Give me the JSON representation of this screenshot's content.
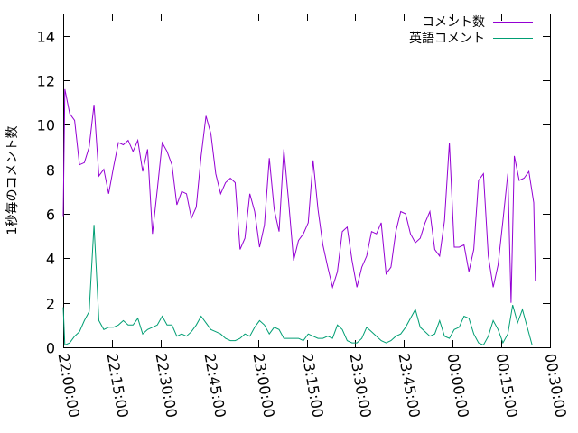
{
  "chart_data": {
    "type": "line",
    "title": "",
    "xlabel": "",
    "ylabel": "1秒毎のコメント数",
    "ylim": [
      0,
      15
    ],
    "yticks": [
      0,
      2,
      4,
      6,
      8,
      10,
      12,
      14
    ],
    "xlim": [
      "22:00:00",
      "00:30:00"
    ],
    "xticks": [
      "22:00:00",
      "22:15:00",
      "22:30:00",
      "22:45:00",
      "23:00:00",
      "23:15:00",
      "23:30:00",
      "23:45:00",
      "00:00:00",
      "00:15:00",
      "00:30:00"
    ],
    "grid": false,
    "legend": "top-right",
    "series": [
      {
        "name": "コメント数",
        "color": "#9400d3",
        "values": [
          [
            "22:00:00",
            5.9
          ],
          [
            "22:00:30",
            11.6
          ],
          [
            "22:02:00",
            10.5
          ],
          [
            "22:03:30",
            10.2
          ],
          [
            "22:05:00",
            8.2
          ],
          [
            "22:06:30",
            8.3
          ],
          [
            "22:08:00",
            9.0
          ],
          [
            "22:09:30",
            10.9
          ],
          [
            "22:11:00",
            7.7
          ],
          [
            "22:12:30",
            8.0
          ],
          [
            "22:14:00",
            6.9
          ],
          [
            "22:15:30",
            8.1
          ],
          [
            "22:17:00",
            9.2
          ],
          [
            "22:18:30",
            9.1
          ],
          [
            "22:20:00",
            9.3
          ],
          [
            "22:21:30",
            8.8
          ],
          [
            "22:23:00",
            9.3
          ],
          [
            "22:24:30",
            7.9
          ],
          [
            "22:26:00",
            8.9
          ],
          [
            "22:27:30",
            5.1
          ],
          [
            "22:29:00",
            7.1
          ],
          [
            "22:30:30",
            9.2
          ],
          [
            "22:32:00",
            8.8
          ],
          [
            "22:33:30",
            8.2
          ],
          [
            "22:35:00",
            6.4
          ],
          [
            "22:36:30",
            7.0
          ],
          [
            "22:38:00",
            6.9
          ],
          [
            "22:39:30",
            5.8
          ],
          [
            "22:41:00",
            6.3
          ],
          [
            "22:42:30",
            8.6
          ],
          [
            "22:44:00",
            10.4
          ],
          [
            "22:45:30",
            9.6
          ],
          [
            "22:47:00",
            7.8
          ],
          [
            "22:48:30",
            6.9
          ],
          [
            "22:50:00",
            7.4
          ],
          [
            "22:51:30",
            7.6
          ],
          [
            "22:53:00",
            7.4
          ],
          [
            "22:54:30",
            4.4
          ],
          [
            "22:56:00",
            4.9
          ],
          [
            "22:57:30",
            6.9
          ],
          [
            "22:59:00",
            6.1
          ],
          [
            "23:00:30",
            4.5
          ],
          [
            "23:02:00",
            5.5
          ],
          [
            "23:03:30",
            8.5
          ],
          [
            "23:05:00",
            6.2
          ],
          [
            "23:06:30",
            5.2
          ],
          [
            "23:08:00",
            8.9
          ],
          [
            "23:09:30",
            6.5
          ],
          [
            "23:11:00",
            3.9
          ],
          [
            "23:12:30",
            4.8
          ],
          [
            "23:14:00",
            5.1
          ],
          [
            "23:15:30",
            5.6
          ],
          [
            "23:17:00",
            8.4
          ],
          [
            "23:18:30",
            6.2
          ],
          [
            "23:20:00",
            4.6
          ],
          [
            "23:21:30",
            3.6
          ],
          [
            "23:23:00",
            2.7
          ],
          [
            "23:24:30",
            3.4
          ],
          [
            "23:26:00",
            5.2
          ],
          [
            "23:27:30",
            5.4
          ],
          [
            "23:29:00",
            3.9
          ],
          [
            "23:30:30",
            2.7
          ],
          [
            "23:32:00",
            3.6
          ],
          [
            "23:33:30",
            4.1
          ],
          [
            "23:35:00",
            5.2
          ],
          [
            "23:36:30",
            5.1
          ],
          [
            "23:38:00",
            5.6
          ],
          [
            "23:39:30",
            3.3
          ],
          [
            "23:41:00",
            3.6
          ],
          [
            "23:42:30",
            5.2
          ],
          [
            "23:44:00",
            6.1
          ],
          [
            "23:45:30",
            6.0
          ],
          [
            "23:47:00",
            5.1
          ],
          [
            "23:48:30",
            4.7
          ],
          [
            "23:50:00",
            4.9
          ],
          [
            "23:51:30",
            5.6
          ],
          [
            "23:53:00",
            6.1
          ],
          [
            "23:54:30",
            4.4
          ],
          [
            "23:56:00",
            4.1
          ],
          [
            "23:57:30",
            5.7
          ],
          [
            "23:59:00",
            9.2
          ],
          [
            "00:00:30",
            4.5
          ],
          [
            "00:02:00",
            4.5
          ],
          [
            "00:03:30",
            4.6
          ],
          [
            "00:05:00",
            3.4
          ],
          [
            "00:06:30",
            4.4
          ],
          [
            "00:08:00",
            7.5
          ],
          [
            "00:09:30",
            7.8
          ],
          [
            "00:11:00",
            4.1
          ],
          [
            "00:12:30",
            2.7
          ],
          [
            "00:14:00",
            3.7
          ],
          [
            "00:15:30",
            5.7
          ],
          [
            "00:17:00",
            7.8
          ],
          [
            "00:18:00",
            2.0
          ],
          [
            "00:19:00",
            8.6
          ],
          [
            "00:20:30",
            7.5
          ],
          [
            "00:22:00",
            7.6
          ],
          [
            "00:23:30",
            7.9
          ],
          [
            "00:25:00",
            6.5
          ],
          [
            "00:25:30",
            3.0
          ]
        ]
      },
      {
        "name": "英語コメント",
        "color": "#009e73",
        "values": [
          [
            "22:00:00",
            1.8
          ],
          [
            "22:00:30",
            0.1
          ],
          [
            "22:02:00",
            0.2
          ],
          [
            "22:03:30",
            0.5
          ],
          [
            "22:05:00",
            0.7
          ],
          [
            "22:06:30",
            1.2
          ],
          [
            "22:08:00",
            1.6
          ],
          [
            "22:09:30",
            5.5
          ],
          [
            "22:11:00",
            1.2
          ],
          [
            "22:12:30",
            0.8
          ],
          [
            "22:14:00",
            0.9
          ],
          [
            "22:15:30",
            0.9
          ],
          [
            "22:17:00",
            1.0
          ],
          [
            "22:18:30",
            1.2
          ],
          [
            "22:20:00",
            1.0
          ],
          [
            "22:21:30",
            1.0
          ],
          [
            "22:23:00",
            1.3
          ],
          [
            "22:24:30",
            0.6
          ],
          [
            "22:26:00",
            0.8
          ],
          [
            "22:27:30",
            0.9
          ],
          [
            "22:29:00",
            1.0
          ],
          [
            "22:30:30",
            1.4
          ],
          [
            "22:32:00",
            1.0
          ],
          [
            "22:33:30",
            1.0
          ],
          [
            "22:35:00",
            0.5
          ],
          [
            "22:36:30",
            0.6
          ],
          [
            "22:38:00",
            0.5
          ],
          [
            "22:39:30",
            0.7
          ],
          [
            "22:41:00",
            1.0
          ],
          [
            "22:42:30",
            1.4
          ],
          [
            "22:44:00",
            1.1
          ],
          [
            "22:45:30",
            0.8
          ],
          [
            "22:47:00",
            0.7
          ],
          [
            "22:48:30",
            0.6
          ],
          [
            "22:50:00",
            0.4
          ],
          [
            "22:51:30",
            0.3
          ],
          [
            "22:53:00",
            0.3
          ],
          [
            "22:54:30",
            0.4
          ],
          [
            "22:56:00",
            0.6
          ],
          [
            "22:57:30",
            0.5
          ],
          [
            "22:59:00",
            0.9
          ],
          [
            "23:00:30",
            1.2
          ],
          [
            "23:02:00",
            1.0
          ],
          [
            "23:03:30",
            0.6
          ],
          [
            "23:05:00",
            0.9
          ],
          [
            "23:06:30",
            0.8
          ],
          [
            "23:08:00",
            0.4
          ],
          [
            "23:09:30",
            0.4
          ],
          [
            "23:11:00",
            0.4
          ],
          [
            "23:12:30",
            0.4
          ],
          [
            "23:14:00",
            0.3
          ],
          [
            "23:15:30",
            0.6
          ],
          [
            "23:17:00",
            0.5
          ],
          [
            "23:18:30",
            0.4
          ],
          [
            "23:20:00",
            0.4
          ],
          [
            "23:21:30",
            0.5
          ],
          [
            "23:23:00",
            0.4
          ],
          [
            "23:24:30",
            1.0
          ],
          [
            "23:26:00",
            0.8
          ],
          [
            "23:27:30",
            0.3
          ],
          [
            "23:29:00",
            0.2
          ],
          [
            "23:30:30",
            0.2
          ],
          [
            "23:32:00",
            0.4
          ],
          [
            "23:33:30",
            0.9
          ],
          [
            "23:35:00",
            0.7
          ],
          [
            "23:36:30",
            0.5
          ],
          [
            "23:38:00",
            0.3
          ],
          [
            "23:39:30",
            0.2
          ],
          [
            "23:41:00",
            0.3
          ],
          [
            "23:42:30",
            0.5
          ],
          [
            "23:44:00",
            0.6
          ],
          [
            "23:45:30",
            0.9
          ],
          [
            "23:47:00",
            1.3
          ],
          [
            "23:48:30",
            1.7
          ],
          [
            "23:50:00",
            0.9
          ],
          [
            "23:51:30",
            0.7
          ],
          [
            "23:53:00",
            0.5
          ],
          [
            "23:54:30",
            0.6
          ],
          [
            "23:56:00",
            1.2
          ],
          [
            "23:57:30",
            0.5
          ],
          [
            "23:59:00",
            0.4
          ],
          [
            "00:00:30",
            0.8
          ],
          [
            "00:02:00",
            0.9
          ],
          [
            "00:03:30",
            1.4
          ],
          [
            "00:05:00",
            1.3
          ],
          [
            "00:06:30",
            0.6
          ],
          [
            "00:08:00",
            0.2
          ],
          [
            "00:09:30",
            0.1
          ],
          [
            "00:11:00",
            0.5
          ],
          [
            "00:12:30",
            1.2
          ],
          [
            "00:14:00",
            0.8
          ],
          [
            "00:15:30",
            0.2
          ],
          [
            "00:17:00",
            0.6
          ],
          [
            "00:18:30",
            1.9
          ],
          [
            "00:20:00",
            1.1
          ],
          [
            "00:21:30",
            1.7
          ],
          [
            "00:23:00",
            0.9
          ],
          [
            "00:24:30",
            0.1
          ]
        ]
      }
    ]
  }
}
